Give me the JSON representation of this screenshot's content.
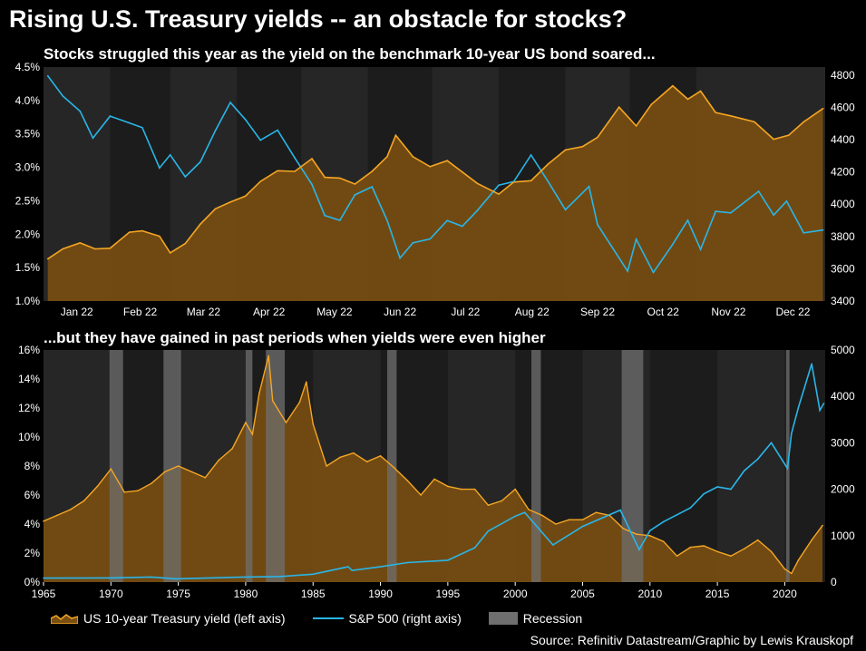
{
  "header": {
    "title": "Rising U.S. Treasury yields -- an obstacle for stocks?"
  },
  "source": "Source: Refinitiv Datastream/Graphic by Lewis Krauskopf",
  "colors": {
    "background": "#000000",
    "panel": "#1c1c1c",
    "band": "#262626",
    "yield_line": "#f5a623",
    "yield_fill": "#7a4f12",
    "sp500_line": "#29b6e8",
    "recession": "#6f6f6f",
    "text": "#ffffff"
  },
  "legend": [
    {
      "label": "US 10-year Treasury yield (left axis)",
      "kind": "area",
      "color": "#f5a623"
    },
    {
      "label": "S&P 500 (right axis)",
      "kind": "line",
      "color": "#29b6e8"
    },
    {
      "label": "Recession",
      "kind": "box",
      "color": "#6f6f6f"
    }
  ],
  "chart_data": [
    {
      "type": "line",
      "subtitle": "Stocks struggled this year as the yield on the benchmark 10-year US bond soared...",
      "x_domain": [
        "2022-01-01",
        "2022-12-31"
      ],
      "x_tick_labels": [
        "Jan 22",
        "Feb 22",
        "Mar 22",
        "Apr 22",
        "May 22",
        "Jun 22",
        "Jul 22",
        "Aug 22",
        "Sep 22",
        "Oct 22",
        "Nov 22",
        "Dec 22"
      ],
      "y_left": {
        "min": 1.0,
        "max": 4.5,
        "ticks": [
          1.0,
          1.5,
          2.0,
          2.5,
          3.0,
          3.5,
          4.0,
          4.5
        ],
        "tick_labels": [
          "1.0%",
          "1.5%",
          "2.0%",
          "2.5%",
          "3.0%",
          "3.5%",
          "4.0%",
          "4.5%"
        ]
      },
      "y_right": {
        "min": 3400,
        "max": 4850,
        "ticks": [
          3400,
          3600,
          3800,
          4000,
          4200,
          4400,
          4600,
          4800
        ],
        "tick_labels": [
          "3400",
          "3600",
          "3800",
          "4000",
          "4200",
          "4400",
          "4600",
          "4800"
        ]
      },
      "series": [
        {
          "name": "US 10-year Treasury yield",
          "axis": "left",
          "style": "area",
          "x": [
            "2022-01-03",
            "2022-01-10",
            "2022-01-18",
            "2022-01-25",
            "2022-02-01",
            "2022-02-10",
            "2022-02-16",
            "2022-02-24",
            "2022-03-01",
            "2022-03-08",
            "2022-03-15",
            "2022-03-22",
            "2022-03-29",
            "2022-04-05",
            "2022-04-12",
            "2022-04-20",
            "2022-04-28",
            "2022-05-06",
            "2022-05-12",
            "2022-05-19",
            "2022-05-26",
            "2022-06-03",
            "2022-06-10",
            "2022-06-14",
            "2022-06-22",
            "2022-06-30",
            "2022-07-08",
            "2022-07-15",
            "2022-07-22",
            "2022-08-01",
            "2022-08-08",
            "2022-08-16",
            "2022-08-24",
            "2022-09-01",
            "2022-09-09",
            "2022-09-16",
            "2022-09-26",
            "2022-10-04",
            "2022-10-11",
            "2022-10-21",
            "2022-10-28",
            "2022-11-03",
            "2022-11-10",
            "2022-11-17",
            "2022-11-28",
            "2022-12-07",
            "2022-12-14",
            "2022-12-21",
            "2022-12-30"
          ],
          "values": [
            1.63,
            1.78,
            1.87,
            1.78,
            1.79,
            2.03,
            2.05,
            1.97,
            1.72,
            1.86,
            2.15,
            2.38,
            2.48,
            2.57,
            2.79,
            2.95,
            2.94,
            3.13,
            2.85,
            2.84,
            2.75,
            2.94,
            3.16,
            3.48,
            3.16,
            3.01,
            3.1,
            2.93,
            2.76,
            2.6,
            2.78,
            2.8,
            3.05,
            3.26,
            3.31,
            3.45,
            3.9,
            3.62,
            3.94,
            4.22,
            4.02,
            4.14,
            3.82,
            3.77,
            3.68,
            3.42,
            3.48,
            3.68,
            3.88
          ]
        },
        {
          "name": "S&P 500",
          "axis": "right",
          "style": "line",
          "x": [
            "2022-01-03",
            "2022-01-10",
            "2022-01-18",
            "2022-01-24",
            "2022-02-01",
            "2022-02-10",
            "2022-02-16",
            "2022-02-24",
            "2022-03-01",
            "2022-03-08",
            "2022-03-15",
            "2022-03-22",
            "2022-03-29",
            "2022-04-05",
            "2022-04-12",
            "2022-04-20",
            "2022-04-28",
            "2022-05-06",
            "2022-05-12",
            "2022-05-19",
            "2022-05-26",
            "2022-06-03",
            "2022-06-10",
            "2022-06-16",
            "2022-06-22",
            "2022-06-30",
            "2022-07-08",
            "2022-07-15",
            "2022-07-22",
            "2022-08-01",
            "2022-08-08",
            "2022-08-16",
            "2022-08-24",
            "2022-09-01",
            "2022-09-12",
            "2022-09-16",
            "2022-09-30",
            "2022-10-04",
            "2022-10-12",
            "2022-10-21",
            "2022-10-28",
            "2022-11-03",
            "2022-11-10",
            "2022-11-17",
            "2022-11-30",
            "2022-12-07",
            "2022-12-13",
            "2022-12-21",
            "2022-12-30"
          ],
          "values": [
            4796,
            4670,
            4577,
            4410,
            4546,
            4504,
            4475,
            4225,
            4306,
            4170,
            4262,
            4456,
            4631,
            4525,
            4397,
            4459,
            4287,
            4123,
            3930,
            3900,
            4058,
            4108,
            3900,
            3666,
            3760,
            3785,
            3899,
            3863,
            3961,
            4118,
            4140,
            4305,
            4140,
            3966,
            4110,
            3873,
            3585,
            3783,
            3577,
            3752,
            3901,
            3720,
            3956,
            3946,
            4080,
            3933,
            4019,
            3822,
            3840
          ]
        }
      ]
    },
    {
      "type": "line",
      "subtitle": "...but they have gained in past periods when yields were even higher",
      "x_domain": [
        1965,
        2023
      ],
      "x_tick_labels": [
        "1965",
        "1970",
        "1975",
        "1980",
        "1985",
        "1990",
        "1995",
        "2000",
        "2005",
        "2010",
        "2015",
        "2020"
      ],
      "y_left": {
        "min": 0,
        "max": 16,
        "ticks": [
          0,
          2,
          4,
          6,
          8,
          10,
          12,
          14,
          16
        ],
        "tick_labels": [
          "0%",
          "2%",
          "4%",
          "6%",
          "8%",
          "10%",
          "12%",
          "14%",
          "16%"
        ]
      },
      "y_right": {
        "min": 0,
        "max": 5000,
        "ticks": [
          0,
          1000,
          2000,
          3000,
          4000,
          5000
        ],
        "tick_labels": [
          "0",
          "1000",
          "2000",
          "3000",
          "4000",
          "5000"
        ]
      },
      "recessions": [
        [
          1969.9,
          1970.9
        ],
        [
          1973.9,
          1975.2
        ],
        [
          1980.0,
          1980.5
        ],
        [
          1981.5,
          1982.9
        ],
        [
          1990.5,
          1991.2
        ],
        [
          2001.2,
          2001.9
        ],
        [
          2007.9,
          2009.5
        ],
        [
          2020.1,
          2020.35
        ]
      ],
      "series": [
        {
          "name": "US 10-year Treasury yield",
          "axis": "left",
          "style": "area",
          "x": [
            1965,
            1966,
            1967,
            1968,
            1969,
            1970,
            1971,
            1972,
            1973,
            1974,
            1975,
            1976,
            1977,
            1978,
            1979,
            1980,
            1980.5,
            1981,
            1981.7,
            1982,
            1983,
            1984,
            1984.5,
            1985,
            1986,
            1987,
            1988,
            1989,
            1990,
            1991,
            1992,
            1993,
            1994,
            1995,
            1996,
            1997,
            1998,
            1999,
            2000,
            2001,
            2002,
            2003,
            2004,
            2005,
            2006,
            2007,
            2008,
            2009,
            2010,
            2011,
            2012,
            2013,
            2014,
            2015,
            2016,
            2017,
            2018,
            2019,
            2020,
            2020.5,
            2021,
            2022,
            2022.8
          ],
          "values": [
            4.2,
            4.6,
            5.0,
            5.6,
            6.6,
            7.8,
            6.2,
            6.3,
            6.8,
            7.6,
            8.0,
            7.6,
            7.2,
            8.4,
            9.2,
            11.0,
            10.2,
            13.0,
            15.6,
            12.5,
            11.0,
            12.4,
            13.8,
            10.9,
            8.0,
            8.6,
            8.9,
            8.3,
            8.7,
            7.9,
            7.0,
            6.0,
            7.1,
            6.6,
            6.4,
            6.4,
            5.3,
            5.6,
            6.4,
            5.0,
            4.6,
            4.0,
            4.3,
            4.3,
            4.8,
            4.6,
            3.7,
            3.3,
            3.2,
            2.8,
            1.8,
            2.4,
            2.5,
            2.1,
            1.8,
            2.3,
            2.9,
            2.1,
            0.9,
            0.6,
            1.5,
            2.9,
            3.9
          ]
        },
        {
          "name": "S&P 500",
          "axis": "right",
          "style": "line",
          "x": [
            1965,
            1970,
            1973,
            1974.8,
            1980,
            1982.5,
            1985,
            1987.6,
            1987.9,
            1990,
            1992,
            1995,
            1997,
            1998,
            2000,
            2000.7,
            2002.8,
            2005,
            2007.8,
            2009.2,
            2010,
            2011,
            2013,
            2014,
            2015,
            2016,
            2017,
            2018,
            2019,
            2020.2,
            2020.5,
            2021,
            2022,
            2022.6,
            2022.9
          ],
          "values": [
            85,
            90,
            110,
            70,
            110,
            120,
            170,
            330,
            250,
            330,
            420,
            470,
            740,
            1100,
            1420,
            1500,
            800,
            1200,
            1550,
            700,
            1110,
            1300,
            1600,
            1900,
            2050,
            2000,
            2400,
            2650,
            3000,
            2450,
            3200,
            3750,
            4700,
            3700,
            3850
          ]
        }
      ]
    }
  ]
}
